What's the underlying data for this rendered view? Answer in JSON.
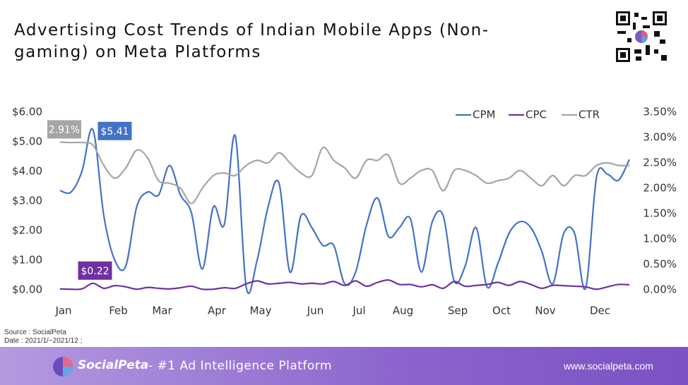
{
  "title": "Advertising Cost Trends of Indian Mobile Apps (Non-gaming) on Meta Platforms",
  "source": "Source : SocialPeta",
  "date": "Date : 2021/1/~2021/12 ;",
  "footer": {
    "brand": "SocialPeta",
    "tagline": "- #1 Ad Intelligence Platform",
    "url": "www.socialpeta.com"
  },
  "chart_data": {
    "type": "line",
    "categories": [
      "Jan",
      null,
      null,
      null,
      null,
      "Feb",
      null,
      null,
      null,
      "Mar",
      null,
      null,
      null,
      null,
      "Apr",
      null,
      null,
      null,
      "May",
      null,
      null,
      null,
      null,
      "Jun",
      null,
      null,
      null,
      "Jul",
      null,
      null,
      null,
      "Aug",
      null,
      null,
      null,
      null,
      "Sep",
      null,
      null,
      null,
      "Oct",
      null,
      null,
      null,
      "Nov",
      null,
      null,
      null,
      null,
      "Dec",
      null,
      null,
      null
    ],
    "ylim": [
      0,
      6
    ],
    "yticks": [
      {
        "value": 0,
        "label": "$0.00"
      },
      {
        "value": 1,
        "label": "$1.00"
      },
      {
        "value": 2,
        "label": "$2.00"
      },
      {
        "value": 3,
        "label": "$3.00"
      },
      {
        "value": 4,
        "label": "$4.00"
      },
      {
        "value": 5,
        "label": "$5.00"
      },
      {
        "value": 6,
        "label": "$6.00"
      }
    ],
    "y2lim": [
      0,
      3.5
    ],
    "y2ticks": [
      {
        "value": 0,
        "label": "0.00%"
      },
      {
        "value": 0.5,
        "label": "0.50%"
      },
      {
        "value": 1,
        "label": "1.00%"
      },
      {
        "value": 1.5,
        "label": "1.50%"
      },
      {
        "value": 2,
        "label": "2.00%"
      },
      {
        "value": 2.5,
        "label": "2.50%"
      },
      {
        "value": 3,
        "label": "3.00%"
      },
      {
        "value": 3.5,
        "label": "3.50%"
      }
    ],
    "legend": "top-right",
    "series": [
      {
        "name": "CPM",
        "color": "#4472c4",
        "values": [
          3.35,
          3.3,
          4.0,
          5.41,
          2.5,
          1.0,
          0.8,
          2.8,
          3.3,
          3.2,
          4.2,
          3.2,
          2.6,
          0.7,
          2.8,
          2.2,
          5.2,
          0.1,
          1.0,
          2.8,
          3.6,
          0.6,
          2.5,
          2.1,
          1.5,
          1.5,
          0.2,
          0.6,
          2.2,
          3.1,
          1.8,
          2.1,
          2.4,
          0.6,
          2.3,
          2.5,
          0.3,
          0.8,
          2.1,
          0.1,
          0.9,
          1.9,
          2.3,
          2.1,
          1.3,
          0.2,
          1.9,
          1.9,
          0.05,
          3.8,
          3.9,
          3.7,
          4.4
        ],
        "value_labels": [
          null,
          null,
          null,
          "$5.41",
          null,
          null,
          null,
          null,
          null,
          null,
          null,
          null,
          null,
          null,
          null,
          null,
          null,
          null,
          null,
          null,
          null,
          null,
          null,
          null,
          null,
          null,
          null,
          null,
          null,
          null,
          null,
          null,
          null,
          null,
          null,
          null,
          null,
          null,
          null,
          null,
          null,
          null,
          null,
          null,
          null,
          null,
          null,
          null,
          null,
          null,
          null,
          null,
          null
        ]
      },
      {
        "name": "CPC",
        "color": "#7030a0",
        "values": [
          0.03,
          0.02,
          0.03,
          0.22,
          0.05,
          0.14,
          0.1,
          0.02,
          0.08,
          0.05,
          0.03,
          0.07,
          0.12,
          0.02,
          0.02,
          0.07,
          0.05,
          0.2,
          0.3,
          0.2,
          0.22,
          0.25,
          0.2,
          0.22,
          0.2,
          0.28,
          0.15,
          0.3,
          0.12,
          0.25,
          0.33,
          0.18,
          0.18,
          0.1,
          0.17,
          0.05,
          0.28,
          0.12,
          0.15,
          0.18,
          0.25,
          0.15,
          0.28,
          0.18,
          0.05,
          0.15,
          0.14,
          0.12,
          0.1,
          0.02,
          0.1,
          0.18,
          0.17
        ],
        "value_labels": [
          null,
          null,
          null,
          "$0.22",
          null,
          null,
          null,
          null,
          null,
          null,
          null,
          null,
          null,
          null,
          null,
          null,
          null,
          null,
          null,
          null,
          null,
          null,
          null,
          null,
          null,
          null,
          null,
          null,
          null,
          null,
          null,
          null,
          null,
          null,
          null,
          null,
          null,
          null,
          null,
          null,
          null,
          null,
          null,
          null,
          null,
          null,
          null,
          null,
          null,
          null,
          null,
          null,
          null
        ]
      },
      {
        "name": "CTR",
        "color": "#a5a5a5",
        "axis": "y2",
        "values": [
          2.91,
          2.9,
          2.9,
          2.85,
          2.45,
          2.2,
          2.4,
          2.75,
          2.6,
          2.15,
          2.1,
          2.0,
          1.7,
          2.0,
          2.25,
          2.3,
          2.25,
          2.45,
          2.55,
          2.5,
          2.7,
          2.5,
          2.3,
          2.25,
          2.8,
          2.55,
          2.4,
          2.2,
          2.55,
          2.55,
          2.65,
          2.1,
          2.2,
          2.35,
          2.35,
          1.95,
          2.35,
          2.35,
          2.25,
          2.1,
          2.15,
          2.2,
          2.35,
          2.2,
          2.05,
          2.25,
          2.05,
          2.25,
          2.25,
          2.45,
          2.5,
          2.45,
          2.45
        ],
        "value_labels": [
          "2.91%",
          null,
          null,
          null,
          null,
          null,
          null,
          null,
          null,
          null,
          null,
          null,
          null,
          null,
          null,
          null,
          null,
          null,
          null,
          null,
          null,
          null,
          null,
          null,
          null,
          null,
          null,
          null,
          null,
          null,
          null,
          null,
          null,
          null,
          null,
          null,
          null,
          null,
          null,
          null,
          null,
          null,
          null,
          null,
          null,
          null,
          null,
          null,
          null,
          null,
          null,
          null,
          null
        ]
      }
    ]
  }
}
